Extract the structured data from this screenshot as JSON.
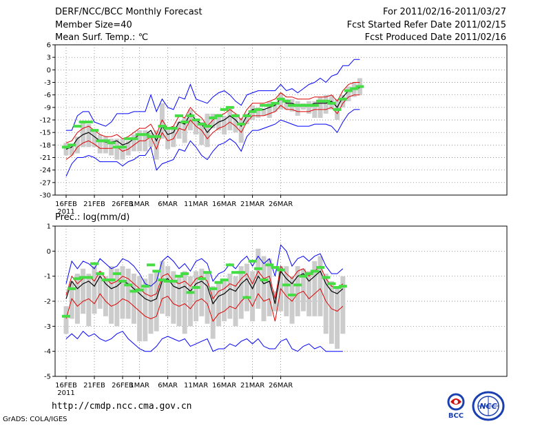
{
  "header": {
    "title": "DERF/NCC/BCC Monthly Forecast",
    "member_size": "Member Size=40",
    "variable": "Mean Surf. Temp.: ℃",
    "forecast_period": "For 2011/02/16-2011/03/27",
    "started_refer": "Fcst Started Refer Date 2011/02/15",
    "produced": "Fcst Produced Date 2011/02/16"
  },
  "footer": {
    "url": "http://cmdp.ncc.cma.gov.cn",
    "credit": "GrADS: COLA/IGES",
    "logos": [
      "BCC",
      "NCC"
    ]
  },
  "colors": {
    "envelope": "#0000ff",
    "spread": "#e00000",
    "mean": "#000000",
    "box": "#cccccc",
    "median": "#44dd44",
    "grid": "#666666"
  },
  "chart_data": [
    {
      "type": "line",
      "title": "Mean Surf. Temp.: ℃",
      "ylim": [
        -30,
        6
      ],
      "yticks": [
        6,
        3,
        0,
        -3,
        -6,
        -9,
        -12,
        -15,
        -18,
        -21,
        -24,
        -27,
        -30
      ],
      "x_labels": [
        "16FEB\n2011",
        "21FEB",
        "26FEB",
        "1MAR",
        "6MAR",
        "11MAR",
        "16MAR",
        "21MAR",
        "26MAR"
      ],
      "series": [
        {
          "name": "mean",
          "values": [
            -19.0,
            -18.5,
            -16.5,
            -15.5,
            -15.0,
            -16.0,
            -17.0,
            -17.3,
            -17.3,
            -17.0,
            -18.0,
            -17.5,
            -16.5,
            -15.5,
            -15.5,
            -14.5,
            -17.0,
            -13.5,
            -15.5,
            -15.0,
            -12.5,
            -13.0,
            -10.5,
            -12.0,
            -13.0,
            -15.0,
            -13.5,
            -12.5,
            -12.0,
            -11.0,
            -12.0,
            -13.5,
            -11.0,
            -9.5,
            -9.5,
            -9.5,
            -9.0,
            -8.5,
            -6.8,
            -8.0,
            -8.0,
            -8.5,
            -8.5,
            -8.5,
            -8.0,
            -8.0,
            -8.0,
            -7.5,
            -9.0,
            -6.5,
            -5.0,
            -4.5,
            -4.3
          ]
        },
        {
          "name": "upper-spread",
          "values": [
            -17.5,
            -17.0,
            -15.0,
            -14.0,
            -13.5,
            -14.5,
            -15.5,
            -16.0,
            -16.0,
            -15.5,
            -16.5,
            -16.0,
            -15.0,
            -14.0,
            -14.0,
            -13.0,
            -15.5,
            -12.0,
            -14.0,
            -13.5,
            -11.0,
            -11.5,
            -9.0,
            -10.5,
            -11.5,
            -13.5,
            -12.0,
            -11.0,
            -10.5,
            -9.5,
            -10.5,
            -12.0,
            -9.5,
            -8.0,
            -8.0,
            -8.0,
            -7.5,
            -7.0,
            -5.5,
            -6.5,
            -6.5,
            -7.0,
            -7.0,
            -7.0,
            -6.5,
            -6.5,
            -6.5,
            -6.0,
            -7.5,
            -5.0,
            -3.5,
            -3.0,
            -3.0
          ]
        },
        {
          "name": "lower-spread",
          "values": [
            -21.5,
            -20.5,
            -18.5,
            -17.5,
            -17.0,
            -17.8,
            -18.8,
            -18.8,
            -18.8,
            -18.5,
            -19.5,
            -19.0,
            -18.0,
            -17.0,
            -17.0,
            -16.0,
            -19.0,
            -15.0,
            -17.0,
            -16.5,
            -14.0,
            -14.5,
            -12.0,
            -13.5,
            -14.5,
            -16.5,
            -15.0,
            -14.0,
            -13.5,
            -12.5,
            -13.5,
            -15.0,
            -12.5,
            -11.0,
            -11.0,
            -11.0,
            -10.5,
            -10.0,
            -8.5,
            -9.5,
            -9.5,
            -10.0,
            -10.0,
            -10.0,
            -9.5,
            -9.5,
            -9.5,
            -9.0,
            -10.5,
            -8.0,
            -6.5,
            -6.0,
            -6.0
          ]
        },
        {
          "name": "max",
          "values": [
            -14.5,
            -14.5,
            -11.0,
            -10.0,
            -10.0,
            -12.5,
            -13.0,
            -13.5,
            -12.5,
            -10.5,
            -10.5,
            -10.5,
            -10.0,
            -10.0,
            -10.0,
            -6.0,
            -10.0,
            -7.0,
            -9.0,
            -9.5,
            -6.5,
            -7.0,
            -3.5,
            -7.0,
            -7.5,
            -8.0,
            -6.5,
            -5.5,
            -5.0,
            -6.0,
            -7.5,
            -8.5,
            -6.0,
            -5.5,
            -5.0,
            -5.0,
            -5.0,
            -5.0,
            -3.5,
            -5.0,
            -4.5,
            -5.5,
            -4.5,
            -3.5,
            -3.0,
            -2.0,
            -3.0,
            -1.5,
            -1.0,
            1.0,
            1.0,
            2.5,
            2.5
          ]
        },
        {
          "name": "min",
          "values": [
            -25.5,
            -22.5,
            -21.0,
            -21.0,
            -20.5,
            -21.0,
            -22.0,
            -22.0,
            -22.0,
            -22.0,
            -23.0,
            -22.0,
            -21.5,
            -20.5,
            -20.5,
            -18.5,
            -24.0,
            -22.5,
            -22.0,
            -21.5,
            -19.0,
            -19.5,
            -17.0,
            -18.5,
            -20.5,
            -21.5,
            -19.5,
            -18.0,
            -17.5,
            -16.5,
            -17.5,
            -19.5,
            -16.0,
            -14.5,
            -14.5,
            -14.0,
            -13.5,
            -13.0,
            -12.0,
            -12.5,
            -13.0,
            -13.5,
            -13.5,
            -13.5,
            -13.0,
            -13.0,
            -13.0,
            -13.5,
            -15.0,
            -12.5,
            -10.5,
            -9.5,
            -9.5
          ]
        },
        {
          "name": "box-high",
          "values": [
            -17.5,
            -18.0,
            -16.0,
            -12.5,
            -13.0,
            -14.5,
            -15.5,
            -16.0,
            -16.5,
            -16.5,
            -16.5,
            -17.0,
            -15.5,
            -14.5,
            -14.5,
            -15.0,
            -14.5,
            -8.0,
            -14.0,
            -13.5,
            -12.5,
            -11.5,
            -9.5,
            -12.0,
            -12.5,
            -10.5,
            -10.5,
            -10.5,
            -11.0,
            -9.0,
            -10.5,
            -11.5,
            -10.5,
            -8.5,
            -9.0,
            -9.5,
            -7.5,
            -8.0,
            -5.5,
            -7.0,
            -7.0,
            -7.5,
            -8.0,
            -7.5,
            -7.5,
            -6.5,
            -6.0,
            -6.0,
            -7.0,
            -6.0,
            -4.0,
            -3.0,
            -2.0
          ]
        },
        {
          "name": "box-low",
          "values": [
            -20.5,
            -20.5,
            -20.0,
            -18.5,
            -18.5,
            -18.5,
            -20.0,
            -20.0,
            -20.5,
            -21.5,
            -21.5,
            -20.5,
            -19.5,
            -19.5,
            -19.5,
            -18.5,
            -21.5,
            -16.5,
            -19.0,
            -18.5,
            -16.5,
            -17.5,
            -14.5,
            -15.5,
            -18.0,
            -18.5,
            -14.0,
            -14.5,
            -15.5,
            -14.5,
            -15.0,
            -17.5,
            -13.0,
            -12.0,
            -11.5,
            -11.0,
            -11.5,
            -10.0,
            -9.5,
            -9.5,
            -10.0,
            -11.0,
            -9.5,
            -10.5,
            -11.5,
            -11.5,
            -10.5,
            -9.5,
            -12.0,
            -9.0,
            -7.5,
            -6.5,
            -6.0
          ]
        },
        {
          "name": "median-marker",
          "values": [
            -18.5,
            -18.0,
            -13.5,
            -12.5,
            -12.5,
            -14.5,
            -17.0,
            -17.0,
            -17.5,
            -18.5,
            -18.5,
            -16.5,
            -16.5,
            -15.5,
            -15.5,
            -16.0,
            -16.0,
            -13.5,
            -14.0,
            -14.0,
            -11.0,
            -12.5,
            -11.0,
            -12.0,
            -13.0,
            -13.5,
            -11.5,
            -11.0,
            -9.5,
            -9.0,
            -11.0,
            -13.0,
            -11.0,
            -10.0,
            -9.5,
            -8.5,
            -8.5,
            -8.0,
            -7.0,
            -7.5,
            -8.5,
            -8.5,
            -8.5,
            -8.5,
            -8.5,
            -7.5,
            -7.5,
            -8.0,
            -9.5,
            -7.0,
            -5.0,
            -4.5,
            -4.0
          ]
        }
      ]
    },
    {
      "type": "line",
      "title": "Prec.: log(mm/d)",
      "ylim": [
        -5,
        1
      ],
      "yticks": [
        1,
        0,
        -1,
        -2,
        -3,
        -4,
        -5
      ],
      "x_labels": [
        "16FEB\n2011",
        "21FEB",
        "26FEB",
        "1MAR",
        "6MAR",
        "11MAR",
        "16MAR",
        "21MAR",
        "26MAR"
      ],
      "series": [
        {
          "name": "mean",
          "values": [
            -1.9,
            -1.2,
            -1.5,
            -1.3,
            -1.2,
            -1.4,
            -1.0,
            -1.3,
            -1.5,
            -1.4,
            -1.2,
            -1.3,
            -1.5,
            -1.7,
            -1.9,
            -2.0,
            -1.9,
            -1.2,
            -1.1,
            -1.4,
            -1.5,
            -1.4,
            -1.6,
            -1.3,
            -1.2,
            -1.4,
            -2.1,
            -1.8,
            -1.7,
            -1.5,
            -1.6,
            -1.3,
            -1.1,
            -1.5,
            -1.0,
            -1.3,
            -1.2,
            -2.1,
            -0.8,
            -1.1,
            -1.3,
            -1.0,
            -0.9,
            -1.2,
            -1.0,
            -0.8,
            -1.3,
            -1.6,
            -1.7,
            -1.5
          ]
        },
        {
          "name": "upper-spread",
          "values": [
            -1.75,
            -1.0,
            -1.3,
            -1.1,
            -1.0,
            -1.2,
            -0.8,
            -1.1,
            -1.3,
            -1.2,
            -1.0,
            -1.1,
            -1.3,
            -1.5,
            -1.7,
            -1.8,
            -1.7,
            -1.0,
            -0.9,
            -1.2,
            -1.3,
            -1.2,
            -1.4,
            -1.1,
            -1.0,
            -1.2,
            -1.9,
            -1.6,
            -1.5,
            -1.3,
            -1.4,
            -1.1,
            -0.9,
            -1.3,
            -0.8,
            -1.1,
            -1.0,
            -1.9,
            -0.6,
            -0.9,
            -1.1,
            -0.8,
            -0.7,
            -1.0,
            -0.8,
            -0.6,
            -1.1,
            -1.4,
            -1.5,
            -1.3
          ]
        },
        {
          "name": "lower-spread",
          "values": [
            -2.7,
            -1.9,
            -2.2,
            -2.0,
            -1.9,
            -2.1,
            -1.7,
            -2.0,
            -2.2,
            -2.1,
            -1.9,
            -2.0,
            -2.2,
            -2.4,
            -2.6,
            -2.7,
            -2.6,
            -1.9,
            -1.8,
            -2.1,
            -2.2,
            -2.1,
            -2.3,
            -2.0,
            -1.9,
            -2.1,
            -2.8,
            -2.5,
            -2.4,
            -2.2,
            -2.3,
            -2.0,
            -1.8,
            -2.2,
            -1.7,
            -2.0,
            -1.9,
            -2.8,
            -1.5,
            -1.8,
            -2.0,
            -1.7,
            -1.6,
            -1.9,
            -1.7,
            -1.5,
            -2.0,
            -2.3,
            -2.4,
            -2.2
          ]
        },
        {
          "name": "max",
          "values": [
            -1.3,
            -0.4,
            -0.7,
            -0.4,
            -0.5,
            -0.7,
            -0.3,
            -0.5,
            -0.7,
            -0.6,
            -0.3,
            -0.4,
            -0.6,
            -0.9,
            -1.3,
            -1.4,
            -1.2,
            -0.4,
            -0.2,
            -0.4,
            -0.7,
            -0.5,
            -0.8,
            -0.4,
            -0.3,
            -0.5,
            -1.2,
            -0.9,
            -0.8,
            -0.5,
            -0.7,
            -0.4,
            -0.2,
            -0.6,
            -0.2,
            -0.5,
            -0.3,
            -1.0,
            0.25,
            0.0,
            -0.6,
            -0.3,
            -0.2,
            -0.4,
            -0.2,
            -0.1,
            -0.6,
            -0.9,
            -0.9,
            -0.7
          ]
        },
        {
          "name": "min",
          "values": [
            -3.5,
            -3.3,
            -3.5,
            -3.2,
            -3.4,
            -3.3,
            -3.5,
            -3.6,
            -3.5,
            -3.3,
            -3.2,
            -3.5,
            -3.7,
            -3.9,
            -4.0,
            -4.0,
            -3.8,
            -3.5,
            -3.4,
            -3.5,
            -3.6,
            -3.5,
            -3.8,
            -3.7,
            -3.6,
            -3.5,
            -4.0,
            -3.9,
            -3.9,
            -3.7,
            -3.8,
            -3.6,
            -3.5,
            -3.7,
            -3.5,
            -3.8,
            -3.9,
            -3.9,
            -3.6,
            -3.5,
            -3.9,
            -4.0,
            -3.8,
            -3.7,
            -3.9,
            -3.8,
            -4.0,
            -4.0,
            -4.0,
            -4.0
          ]
        },
        {
          "name": "box-high",
          "values": [
            -2.2,
            -1.2,
            -0.9,
            -0.7,
            -0.9,
            -0.6,
            -0.8,
            -1.0,
            -0.6,
            -0.7,
            -0.6,
            -0.7,
            -0.9,
            -1.0,
            -1.1,
            -0.9,
            -0.8,
            -0.4,
            -0.6,
            -0.8,
            -1.0,
            -0.8,
            -1.0,
            -0.8,
            -0.7,
            -0.8,
            -1.4,
            -1.2,
            -1.1,
            -0.9,
            -1.0,
            -0.6,
            -0.5,
            -0.8,
            0.1,
            -0.2,
            -0.3,
            -1.6,
            -0.6,
            -0.6,
            -1.0,
            -0.6,
            -0.7,
            -0.8,
            -0.4,
            -0.2,
            -0.9,
            -1.2,
            -1.4,
            -1.0
          ]
        },
        {
          "name": "box-low",
          "values": [
            -3.3,
            -2.7,
            -2.9,
            -2.5,
            -3.0,
            -2.5,
            -2.3,
            -2.6,
            -2.9,
            -3.0,
            -2.7,
            -2.7,
            -2.9,
            -3.6,
            -3.6,
            -3.3,
            -3.2,
            -2.5,
            -2.6,
            -2.9,
            -3.0,
            -3.3,
            -3.0,
            -2.8,
            -2.6,
            -2.9,
            -3.5,
            -3.0,
            -2.8,
            -2.7,
            -3.0,
            -2.7,
            -2.4,
            -2.8,
            -2.3,
            -2.8,
            -2.6,
            -2.4,
            -2.4,
            -2.6,
            -2.9,
            -2.6,
            -2.4,
            -2.6,
            -2.6,
            -2.6,
            -3.3,
            -3.7,
            -3.9,
            -3.3
          ]
        },
        {
          "name": "median-marker",
          "values": [
            -2.6,
            -1.5,
            -1.1,
            -1.05,
            -1.05,
            -0.5,
            -0.9,
            -1.15,
            -1.15,
            -0.9,
            -1.2,
            -1.35,
            -1.6,
            -1.55,
            -1.4,
            -0.55,
            -0.8,
            -1.15,
            -1.2,
            -1.2,
            -1.0,
            -0.9,
            -1.65,
            -1.45,
            -1.1,
            -0.85,
            -1.5,
            -1.25,
            -1.15,
            -0.55,
            -0.85,
            -0.85,
            -1.85,
            -0.4,
            -0.7,
            -1.15,
            -0.55,
            -0.65,
            -0.75,
            -1.35,
            -1.75,
            -1.35,
            -1.0,
            -0.9,
            -0.8,
            -0.65,
            -1.05,
            -1.3,
            -1.45,
            -1.4
          ]
        }
      ]
    }
  ]
}
